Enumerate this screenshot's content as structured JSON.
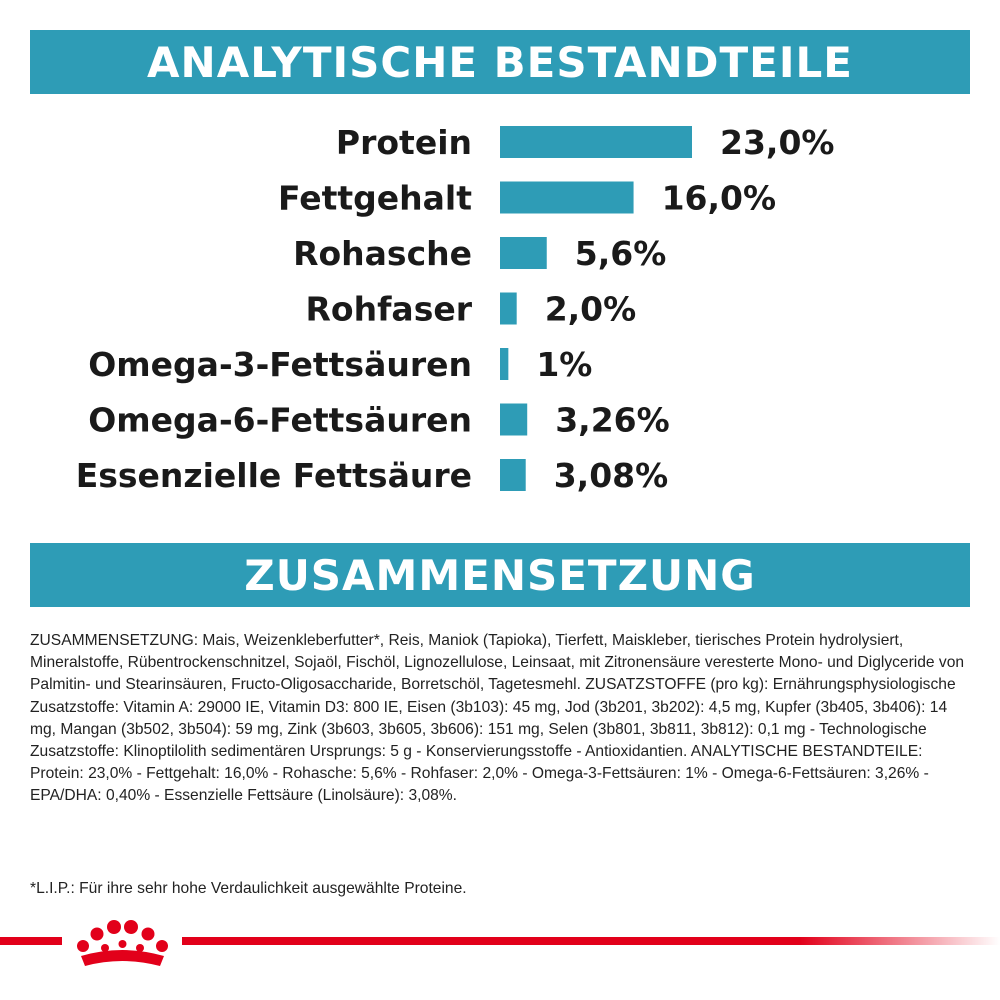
{
  "header": {
    "title": "ANALYTISCHE BESTANDTEILE"
  },
  "section2": {
    "title": "ZUSAMMENSETZUNG"
  },
  "colors": {
    "accent": "#2e9cb6",
    "brand_red": "#e2001a"
  },
  "chart_data": {
    "type": "bar",
    "orientation": "horizontal",
    "categories": [
      "Protein",
      "Fettgehalt",
      "Rohasche",
      "Rohfaser",
      "Omega-3-Fettsäuren",
      "Omega-6-Fettsäuren",
      "Essenzielle Fettsäure"
    ],
    "values": [
      23.0,
      16.0,
      5.6,
      2.0,
      1,
      3.26,
      3.08
    ],
    "value_labels": [
      "23,0%",
      "16,0%",
      "5,6%",
      "2,0%",
      "1%",
      "3,26%",
      "3,08%"
    ],
    "xlim": [
      0,
      23.0
    ],
    "grid": false,
    "legend": "none"
  },
  "composition": {
    "paragraph": "ZUSAMMENSETZUNG: Mais, Weizenkleberfutter*, Reis, Maniok (Tapioka), Tierfett, Maiskleber, tierisches Protein hydrolysiert, Mineralstoffe, Rübentrockenschnitzel, Sojaöl, Fischöl, Lignozellulose, Leinsaat, mit Zitronensäure veresterte Mono- und Diglyceride von Palmitin- und Stearinsäuren, Fructo-Oligosaccharide, Borretschöl, Tagetesmehl. ZUSATZSTOFFE (pro kg): Ernährungsphysiologische Zusatzstoffe: Vitamin A: 29000 IE, Vitamin D3: 800 IE, Eisen (3b103): 45 mg, Jod (3b201, 3b202): 4,5 mg, Kupfer (3b405, 3b406): 14 mg, Mangan (3b502, 3b504): 59 mg, Zink (3b603, 3b605, 3b606): 151 mg, Selen (3b801, 3b811, 3b812): 0,1 mg - Technologische Zusatzstoffe: Klinoptilolith sedimentären Ursprungs: 5 g - Konservierungsstoffe - Antioxidantien. ANALYTISCHE BESTANDTEILE: Protein: 23,0% - Fettgehalt: 16,0% - Rohasche: 5,6% - Rohfaser: 2,0% - Omega-3-Fettsäuren: 1% - Omega-6-Fettsäuren: 3,26% - EPA/DHA: 0,40% - Essenzielle Fettsäure (Linolsäure): 3,08%.",
    "footnote": "*L.I.P.: Für ihre sehr hohe Verdaulichkeit ausgewählte Proteine."
  },
  "footer": {
    "logo_icon": "royal-canin-crown-icon"
  }
}
